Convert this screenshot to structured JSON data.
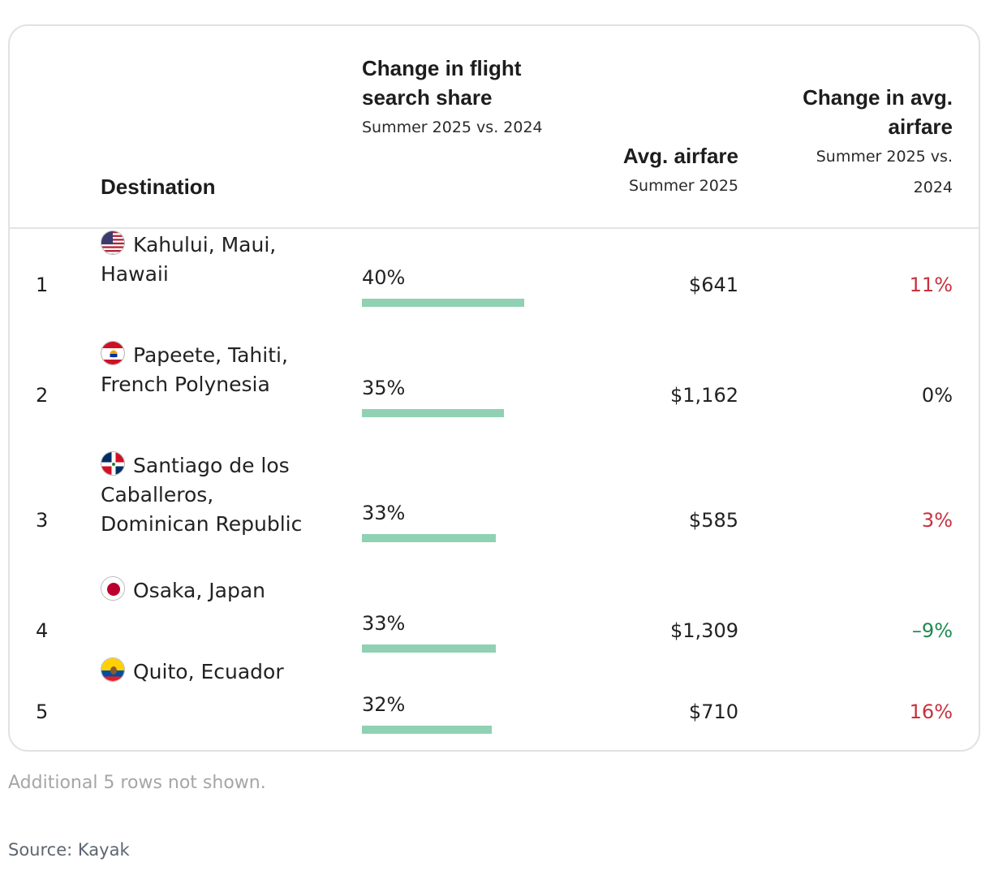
{
  "chart_data": {
    "type": "table",
    "columns": {
      "destination": {
        "title": "Destination"
      },
      "share": {
        "title": "Change in flight search share",
        "subtitle": "Summer 2025 vs. 2024"
      },
      "fare": {
        "title": "Avg. airfare",
        "subtitle": "Summer 2025"
      },
      "change": {
        "title": "Change in avg. airfare",
        "subtitle": "Summer 2025 vs. 2024"
      }
    },
    "rows": [
      {
        "rank": "1",
        "destination": "Kahului, Maui, Hawaii",
        "flag": "us-flag-icon",
        "share": 40,
        "share_label": "40%",
        "fare": "$641",
        "change": "11%",
        "change_color": "#c8313e"
      },
      {
        "rank": "2",
        "destination": "Papeete, Tahiti, French Polynesia",
        "flag": "french-polynesia-flag-icon",
        "share": 35,
        "share_label": "35%",
        "fare": "$1,162",
        "change": "0%",
        "change_color": "#222222"
      },
      {
        "rank": "3",
        "destination": "Santiago de los Caballeros, Dominican Republic",
        "flag": "dominican-republic-flag-icon",
        "share": 33,
        "share_label": "33%",
        "fare": "$585",
        "change": "3%",
        "change_color": "#c8313e"
      },
      {
        "rank": "4",
        "destination": "Osaka, Japan",
        "flag": "japan-flag-icon",
        "share": 33,
        "share_label": "33%",
        "fare": "$1,309",
        "change": "–9%",
        "change_color": "#1f8a52"
      },
      {
        "rank": "5",
        "destination": "Quito, Ecuador",
        "flag": "ecuador-flag-icon",
        "share": 32,
        "share_label": "32%",
        "fare": "$710",
        "change": "16%",
        "change_color": "#c8313e"
      }
    ],
    "bar_color": "#8fd1b2"
  },
  "footer": {
    "note": "Additional 5 rows not shown.",
    "source": "Source: Kayak"
  }
}
